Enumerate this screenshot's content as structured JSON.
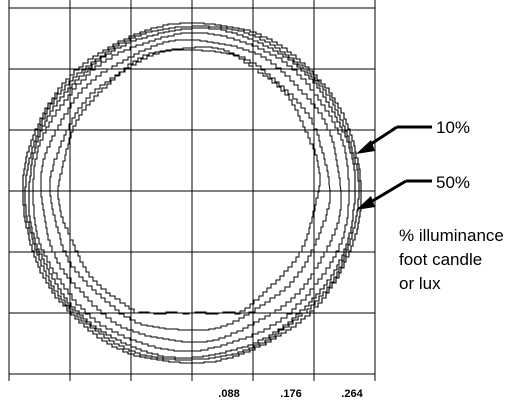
{
  "chart_data": {
    "type": "contour",
    "x_tick_labels": [
      ".088",
      ".176",
      ".264"
    ],
    "x_tick_values": [
      0.088,
      0.176,
      0.264
    ],
    "grid": true,
    "contour_levels": [
      {
        "label": "10%",
        "percent": 10
      },
      {
        "label": "50%",
        "percent": 50
      }
    ],
    "legend_text": [
      "% illuminance",
      "foot candle",
      "or lux"
    ],
    "colors": {
      "line": "#000000",
      "background": "#ffffff"
    }
  }
}
